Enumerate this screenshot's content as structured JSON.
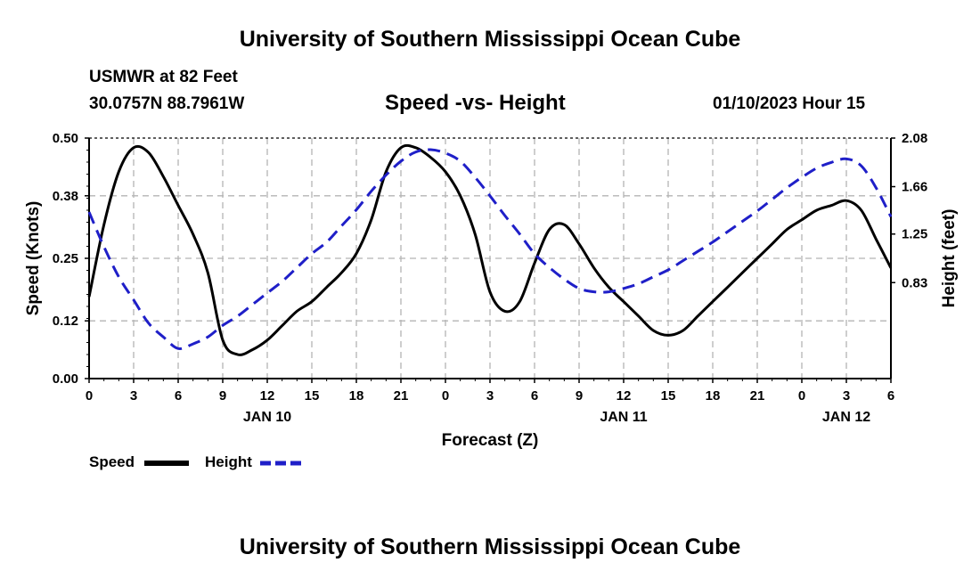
{
  "header": {
    "title": "University of Southern Mississippi Ocean Cube",
    "station": "USMWR at 82 Feet",
    "coords": "30.0757N  88.7961W",
    "datetime": "01/10/2023 Hour 15"
  },
  "footer": {
    "title": "University of Southern Mississippi Ocean Cube"
  },
  "colors": {
    "speed": "#000000",
    "height": "#1f1fc8",
    "grid": "#b4b4b4"
  },
  "chart_data": {
    "type": "line",
    "title": "Speed -vs- Height",
    "xlabel": "Forecast (Z)",
    "ylabel": "Speed (Knots)",
    "y2label": "Height (feet)",
    "x_ticks": [
      "0",
      "3",
      "6",
      "9",
      "12",
      "15",
      "18",
      "21",
      "0",
      "3",
      "6",
      "9",
      "12",
      "15",
      "18",
      "21",
      "0",
      "3",
      "6"
    ],
    "x_range": [
      0,
      54
    ],
    "day_labels": [
      {
        "label": "JAN 10",
        "x": 12
      },
      {
        "label": "JAN 11",
        "x": 36
      },
      {
        "label": "JAN 12",
        "x": 51
      }
    ],
    "ylim": [
      0,
      0.5
    ],
    "y_ticks": [
      "0.00",
      "0.12",
      "0.25",
      "0.38",
      "0.50"
    ],
    "y2lim": [
      0,
      2.08
    ],
    "y2_ticks": [
      "0.83",
      "1.25",
      "1.66",
      "2.08"
    ],
    "grid": true,
    "legend": {
      "position": "bottom-left",
      "entries": [
        "Speed",
        "Height"
      ]
    },
    "series": [
      {
        "name": "Speed",
        "axis": "left",
        "style": "solid",
        "x": [
          0,
          1,
          2,
          3,
          4,
          5,
          6,
          7,
          8,
          9,
          10,
          11,
          12,
          13,
          14,
          15,
          16,
          17,
          18,
          19,
          20,
          21,
          22,
          23,
          24,
          25,
          26,
          27,
          28,
          29,
          30,
          31,
          32,
          33,
          34,
          35,
          36,
          37,
          38,
          39,
          40,
          41,
          42,
          43,
          44,
          45,
          46,
          47,
          48,
          49,
          50,
          51,
          52,
          53,
          54
        ],
        "values": [
          0.17,
          0.32,
          0.43,
          0.48,
          0.47,
          0.42,
          0.36,
          0.3,
          0.22,
          0.08,
          0.05,
          0.06,
          0.08,
          0.11,
          0.14,
          0.16,
          0.19,
          0.22,
          0.26,
          0.33,
          0.43,
          0.48,
          0.48,
          0.46,
          0.43,
          0.38,
          0.3,
          0.18,
          0.14,
          0.16,
          0.24,
          0.31,
          0.32,
          0.28,
          0.23,
          0.19,
          0.16,
          0.13,
          0.1,
          0.09,
          0.1,
          0.13,
          0.16,
          0.19,
          0.22,
          0.25,
          0.28,
          0.31,
          0.33,
          0.35,
          0.36,
          0.37,
          0.35,
          0.29,
          0.23
        ]
      },
      {
        "name": "Height",
        "axis": "right",
        "style": "dashed",
        "x": [
          0,
          1,
          2,
          3,
          4,
          5,
          6,
          7,
          8,
          9,
          10,
          11,
          12,
          13,
          14,
          15,
          16,
          17,
          18,
          19,
          20,
          21,
          22,
          23,
          24,
          25,
          26,
          27,
          28,
          29,
          30,
          31,
          32,
          33,
          34,
          35,
          36,
          37,
          38,
          39,
          40,
          41,
          42,
          43,
          44,
          45,
          46,
          47,
          48,
          49,
          50,
          51,
          52,
          53,
          54
        ],
        "values": [
          1.44,
          1.14,
          0.88,
          0.68,
          0.48,
          0.36,
          0.26,
          0.3,
          0.36,
          0.46,
          0.54,
          0.64,
          0.74,
          0.84,
          0.96,
          1.08,
          1.18,
          1.32,
          1.46,
          1.62,
          1.76,
          1.88,
          1.96,
          1.98,
          1.95,
          1.88,
          1.74,
          1.58,
          1.41,
          1.25,
          1.08,
          0.96,
          0.86,
          0.78,
          0.75,
          0.75,
          0.78,
          0.82,
          0.88,
          0.94,
          1.02,
          1.1,
          1.18,
          1.27,
          1.36,
          1.45,
          1.55,
          1.65,
          1.74,
          1.82,
          1.87,
          1.9,
          1.84,
          1.65,
          1.4
        ]
      }
    ]
  }
}
